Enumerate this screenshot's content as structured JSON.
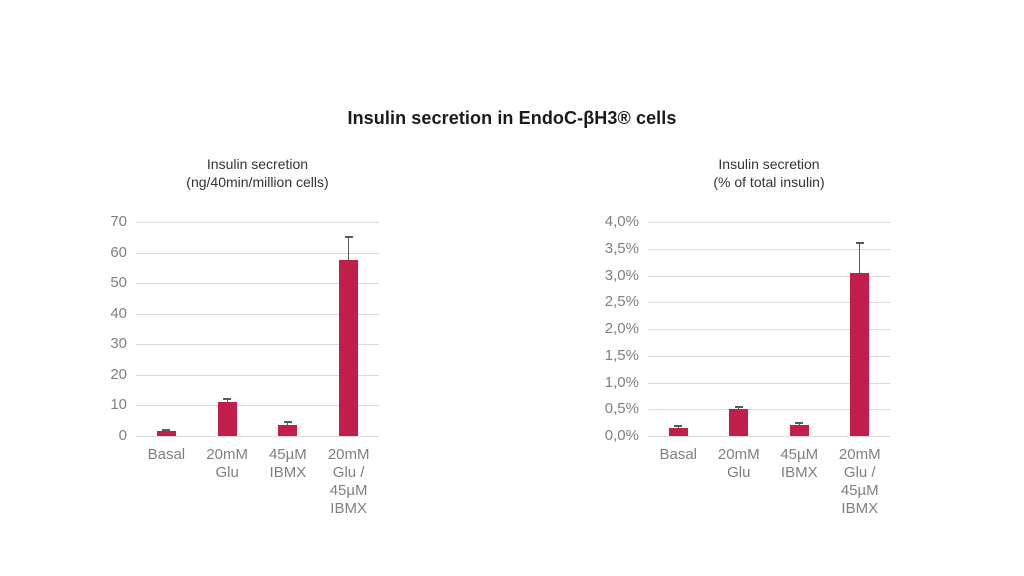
{
  "title": "Insulin secretion in EndoC-βH3® cells",
  "colors": {
    "background": "#ffffff",
    "bar": "#c21e4b",
    "gridline": "#d9d9d9",
    "axis_text": "#7f7f7f",
    "subtitle_text": "#333333",
    "title_text": "#1a1a1a",
    "error_bar": "#595959"
  },
  "chart_data": [
    {
      "type": "bar",
      "title": "Insulin secretion (ng/40min/million cells)",
      "title_lines": [
        "Insulin secretion",
        "(ng/40min/million cells)"
      ],
      "categories": [
        "Basal",
        "20mM Glu",
        "45µM IBMX",
        "20mM Glu / 45µM IBMX"
      ],
      "category_label_lines": [
        [
          "Basal"
        ],
        [
          "20mM",
          "Glu"
        ],
        [
          "45µM",
          "IBMX"
        ],
        [
          "20mM",
          "Glu /",
          "45µM",
          "IBMX"
        ]
      ],
      "values": [
        1.5,
        11,
        3.5,
        57.5
      ],
      "errors_plus": [
        0.5,
        1,
        1,
        7.5
      ],
      "xlabel": "",
      "ylabel": "ng/40min/million cells",
      "ylim": [
        0,
        70
      ],
      "yticks": [
        0,
        10,
        20,
        30,
        40,
        50,
        60,
        70
      ],
      "ytick_labels": [
        "0",
        "10",
        "20",
        "30",
        "40",
        "50",
        "60",
        "70"
      ],
      "grid": "horizontal",
      "legend": "none"
    },
    {
      "type": "bar",
      "title": "Insulin secretion (% of total insulin)",
      "title_lines": [
        "Insulin secretion",
        "(% of total insulin)"
      ],
      "categories": [
        "Basal",
        "20mM Glu",
        "45µM IBMX",
        "20mM Glu / 45µM IBMX"
      ],
      "category_label_lines": [
        [
          "Basal"
        ],
        [
          "20mM",
          "Glu"
        ],
        [
          "45µM",
          "IBMX"
        ],
        [
          "20mM",
          "Glu /",
          "45µM",
          "IBMX"
        ]
      ],
      "values": [
        0.15,
        0.5,
        0.2,
        3.05
      ],
      "errors_plus": [
        0.03,
        0.05,
        0.04,
        0.55
      ],
      "xlabel": "",
      "ylabel": "% of total insulin",
      "ylim": [
        0,
        4
      ],
      "yticks": [
        0,
        0.5,
        1,
        1.5,
        2,
        2.5,
        3,
        3.5,
        4
      ],
      "ytick_labels": [
        "0,0%",
        "0,5%",
        "1,0%",
        "1,5%",
        "2,0%",
        "2,5%",
        "3,0%",
        "3,5%",
        "4,0%"
      ],
      "grid": "horizontal",
      "legend": "none"
    }
  ]
}
